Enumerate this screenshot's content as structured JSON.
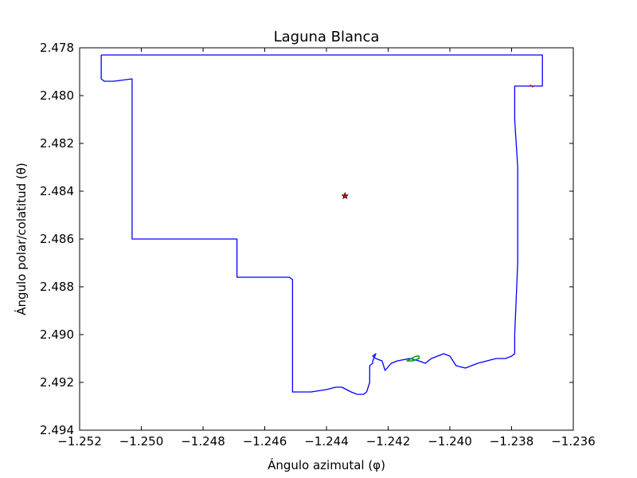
{
  "chart_data": {
    "type": "line",
    "title": "Laguna Blanca",
    "xlabel": "Ángulo azimutal (φ)",
    "ylabel": "Ángulo polar/colatitud (θ)",
    "xlim": [
      -1.252,
      -1.236
    ],
    "ylim": [
      2.478,
      2.494
    ],
    "y_inverted": true,
    "grid": false,
    "xticks": [
      "−1.252",
      "−1.250",
      "−1.248",
      "−1.246",
      "−1.244",
      "−1.242",
      "−1.240",
      "−1.238",
      "−1.236"
    ],
    "yticks": [
      "2.478",
      "2.480",
      "2.482",
      "2.484",
      "2.486",
      "2.488",
      "2.490",
      "2.492",
      "2.494"
    ],
    "colors": {
      "boundary": "#0000ff",
      "lagoon": "#00a000",
      "marker": "#cc0000",
      "red_segment": "#ff0000"
    },
    "series": [
      {
        "kind": "boundary",
        "x": [
          -1.2513,
          -1.237,
          -1.237,
          -1.2375,
          -1.2379,
          -1.2379,
          -1.2378,
          -1.2378,
          -1.2379,
          -1.2379,
          -1.238,
          -1.2382,
          -1.2385,
          -1.2388,
          -1.2391,
          -1.2395,
          -1.2398,
          -1.24,
          -1.2402,
          -1.2404,
          -1.2406,
          -1.2407,
          -1.2408,
          -1.241,
          -1.2413,
          -1.2417,
          -1.2419,
          -1.2421,
          -1.2422,
          -1.2424,
          -1.2425,
          -1.2424,
          -1.2425,
          -1.2425,
          -1.2426,
          -1.2426,
          -1.2427,
          -1.2428,
          -1.243,
          -1.2432,
          -1.2435,
          -1.2437,
          -1.244,
          -1.2445,
          -1.2451,
          -1.2451,
          -1.2451,
          -1.2452,
          -1.2456,
          -1.246,
          -1.2469,
          -1.2469,
          -1.2469,
          -1.2503,
          -1.2503,
          -1.2503,
          -1.2509,
          -1.2512,
          -1.2513,
          -1.2513
        ],
        "y": [
          2.4783,
          2.4783,
          2.4796,
          2.4796,
          2.4796,
          2.481,
          2.483,
          2.487,
          2.49,
          2.4908,
          2.4909,
          2.491,
          2.491,
          2.4911,
          2.4912,
          2.4914,
          2.4913,
          2.4909,
          2.4908,
          2.4909,
          2.491,
          2.4911,
          2.4912,
          2.4911,
          2.491,
          2.4911,
          2.4912,
          2.4915,
          2.4911,
          2.491,
          2.4909,
          2.4908,
          2.4911,
          2.4912,
          2.4913,
          2.492,
          2.4924,
          2.4925,
          2.4925,
          2.4924,
          2.4922,
          2.4922,
          2.4923,
          2.4924,
          2.4924,
          2.492,
          2.4877,
          2.4876,
          2.4876,
          2.4876,
          2.4876,
          2.4861,
          2.486,
          2.486,
          2.4842,
          2.4793,
          2.4794,
          2.4794,
          2.4793,
          2.4783
        ]
      },
      {
        "kind": "lagoon",
        "x": [
          -1.2414,
          -1.2412,
          -1.241,
          -1.241,
          -1.2411,
          -1.2414
        ],
        "y": [
          2.4911,
          2.4911,
          2.491,
          2.4909,
          2.4909,
          2.4911
        ]
      },
      {
        "kind": "red_segment",
        "x": [
          -1.2374,
          -1.2373
        ],
        "y": [
          2.47955,
          2.47965
        ]
      }
    ],
    "marker": {
      "shape": "star",
      "x": -1.2434,
      "y": 2.4842
    }
  }
}
